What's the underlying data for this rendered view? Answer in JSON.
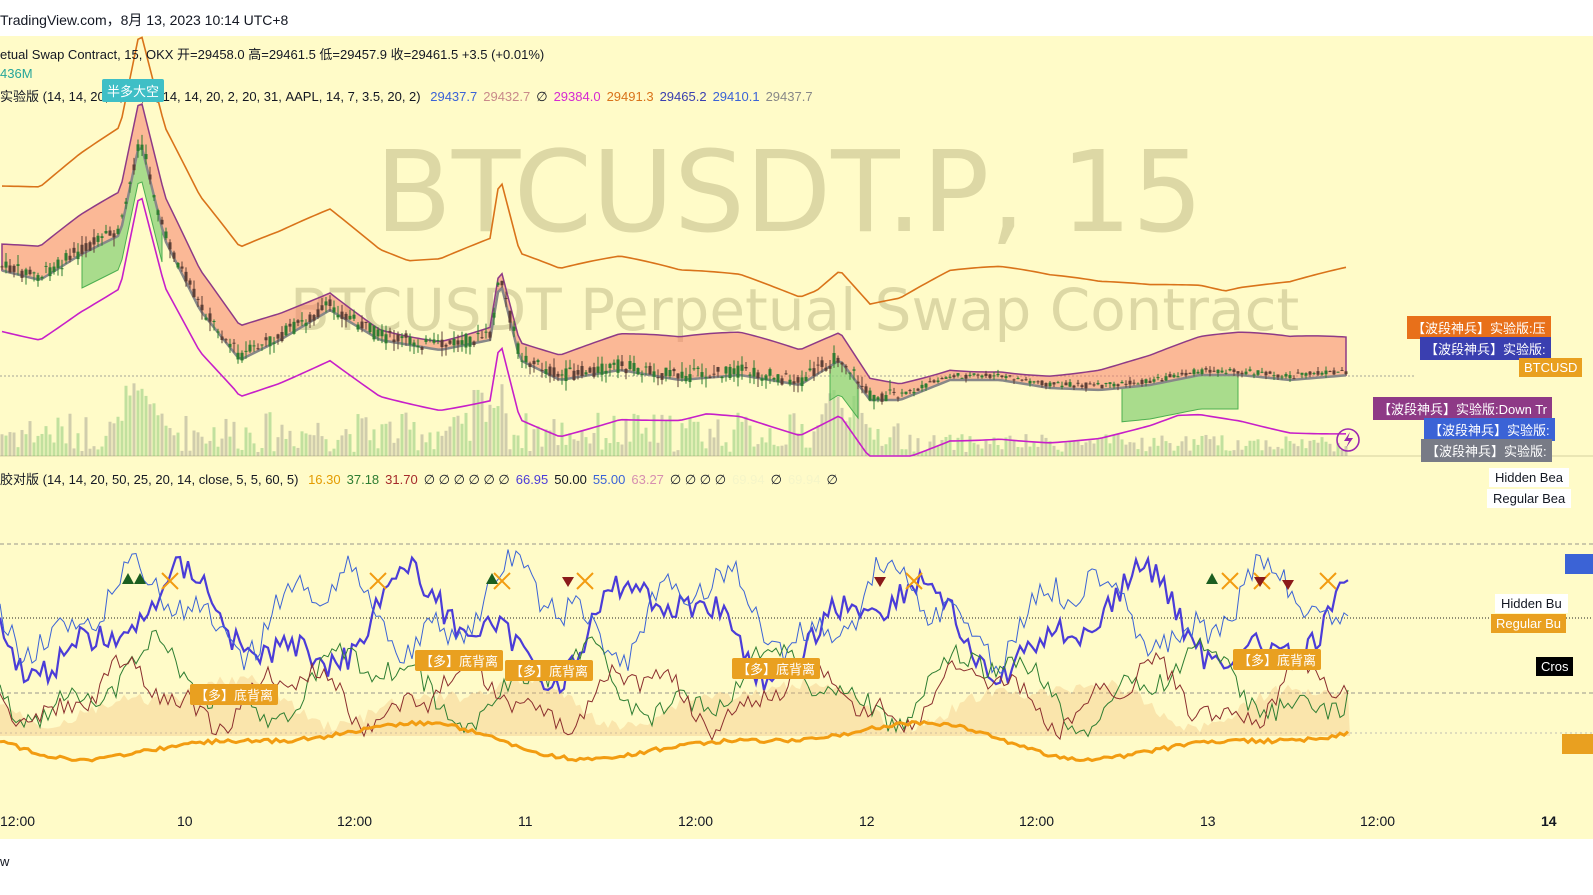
{
  "header": {
    "source": "TradingView.com，8月 13, 2023 10:14 UTC+8"
  },
  "legend": {
    "main": "etual Swap Contract, 15, OKX  开=29458.0  高=29461.5  低=29457.9  收=29461.5  +3.5 (+0.01%)",
    "volume": "436M",
    "indicator_name": "实验版 (14, 14, 20, 7, 14, 7, 14, 14, 20, 2, 20, 31, AAPL, 14, 7, 3.5, 20, 2)",
    "indicator_values": [
      {
        "text": "29437.7",
        "color": "#3b63d6"
      },
      {
        "text": "29432.7",
        "color": "#c98a8a"
      },
      {
        "text": "∅",
        "color": "#131722"
      },
      {
        "text": "29384.0",
        "color": "#d52ad2"
      },
      {
        "text": "29491.3",
        "color": "#d9731a"
      },
      {
        "text": "29465.2",
        "color": "#3a3fb0"
      },
      {
        "text": "29410.1",
        "color": "#3b63d6"
      },
      {
        "text": "29437.7",
        "color": "#888888"
      }
    ],
    "osc_name": "胶对版 (14, 14, 20, 50, 25, 20, 14, close, 5, 5, 60, 5)",
    "osc_values": [
      {
        "text": "16.30",
        "color": "#e39b00"
      },
      {
        "text": "37.18",
        "color": "#2e7d32"
      },
      {
        "text": "31.70",
        "color": "#a52a2a"
      },
      {
        "text": "∅  ∅  ∅  ∅  ∅  ∅",
        "color": "#131722"
      },
      {
        "text": "66.95",
        "color": "#4b3cd8"
      },
      {
        "text": "50.00",
        "color": "#131722"
      },
      {
        "text": "55.00",
        "color": "#3b63d6"
      },
      {
        "text": "63.27",
        "color": "#d68fb0"
      },
      {
        "text": "∅  ∅  ∅  ∅",
        "color": "#131722"
      },
      {
        "text": "69.94",
        "color": "#f5f5c8"
      },
      {
        "text": "∅",
        "color": "#131722"
      },
      {
        "text": "69.94",
        "color": "#f5f5c8"
      },
      {
        "text": "∅",
        "color": "#131722"
      }
    ]
  },
  "watermark": {
    "symbol": "BTCUSDT.P, 15",
    "description": "BTCUSDT Perpetual Swap Contract"
  },
  "signal_label": "半多大空",
  "right_tags": [
    {
      "text": "【波段神兵】实验版:压",
      "bg": "#e8701a"
    },
    {
      "text": "【波段神兵】实验版:",
      "bg": "#3a3fb0"
    },
    {
      "text": "BTCUSD",
      "bg": "#e9a020"
    },
    {
      "text": "【波段神兵】实验版:Down Tr",
      "bg": "#8e3a86"
    },
    {
      "text": "【波段神兵】实验版:",
      "bg": "#3b63d6"
    },
    {
      "text": "【波段神兵】实验版:",
      "bg": "#787b86"
    }
  ],
  "osc_tags": {
    "hidden_bear": "Hidden Bea",
    "regular_bear": "Regular Bea",
    "hidden_bull": "Hidden Bu",
    "regular_bull": "Regular Bu",
    "cross": "Cros"
  },
  "divergence_labels": [
    "【多】底背离",
    "【多】底背离",
    "【多】底背离",
    "【多】底背离",
    "【多】底背离"
  ],
  "x_axis": [
    "12:00",
    "10",
    "12:00",
    "11",
    "12:00",
    "12",
    "12:00",
    "13",
    "12:00",
    "14"
  ],
  "footer": {
    "text": "w"
  },
  "colors": {
    "chart_bg": "#fffbc8",
    "price_line": "#2e7d32",
    "upper_band": "#d9731a",
    "lower_band": "#c71fc9",
    "cloud_bear": "#f8a08a",
    "cloud_bull": "#9bd58a",
    "rsi_main": "#4b3cd8"
  }
}
